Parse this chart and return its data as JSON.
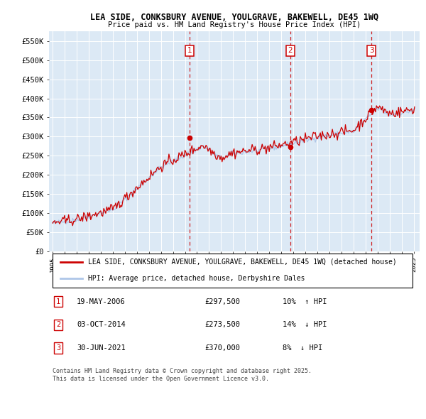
{
  "title": "LEA SIDE, CONKSBURY AVENUE, YOULGRAVE, BAKEWELL, DE45 1WQ",
  "subtitle": "Price paid vs. HM Land Registry's House Price Index (HPI)",
  "ylim": [
    0,
    575000
  ],
  "yticks": [
    0,
    50000,
    100000,
    150000,
    200000,
    250000,
    300000,
    350000,
    400000,
    450000,
    500000,
    550000
  ],
  "ytick_labels": [
    "£0",
    "£50K",
    "£100K",
    "£150K",
    "£200K",
    "£250K",
    "£300K",
    "£350K",
    "£400K",
    "£450K",
    "£500K",
    "£550K"
  ],
  "hpi_color": "#aec6e8",
  "price_color": "#cc0000",
  "vline_color": "#cc0000",
  "background_color": "#ffffff",
  "plot_bg_color": "#dce9f5",
  "grid_color": "#ffffff",
  "legend_entries": [
    "LEA SIDE, CONKSBURY AVENUE, YOULGRAVE, BAKEWELL, DE45 1WQ (detached house)",
    "HPI: Average price, detached house, Derbyshire Dales"
  ],
  "transactions": [
    {
      "num": 1,
      "date": "19-MAY-2006",
      "price": 297500,
      "year": 2006.38,
      "pct": "10%",
      "dir": "↑"
    },
    {
      "num": 2,
      "date": "03-OCT-2014",
      "price": 273500,
      "year": 2014.75,
      "pct": "14%",
      "dir": "↓"
    },
    {
      "num": 3,
      "date": "30-JUN-2021",
      "price": 370000,
      "year": 2021.5,
      "pct": "8%",
      "dir": "↓"
    }
  ],
  "footer": "Contains HM Land Registry data © Crown copyright and database right 2025.\nThis data is licensed under the Open Government Licence v3.0."
}
